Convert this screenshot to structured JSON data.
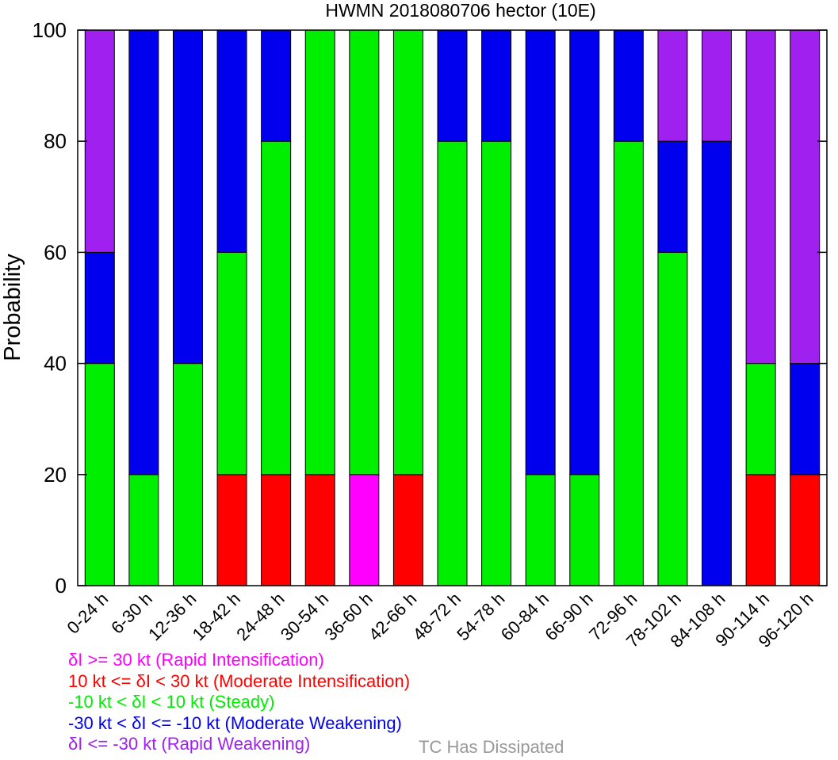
{
  "chart_data": {
    "type": "bar",
    "stacked": true,
    "title": "HWMN 2018080706 hector (10E)",
    "xlabel": "",
    "ylabel": "Probability",
    "ylim": [
      0,
      100
    ],
    "yticks": [
      0,
      20,
      40,
      60,
      80,
      100
    ],
    "categories": [
      "0-24 h",
      "6-30 h",
      "12-36 h",
      "18-42 h",
      "24-48 h",
      "30-54 h",
      "36-60 h",
      "42-66 h",
      "48-72 h",
      "54-78 h",
      "60-84 h",
      "66-90 h",
      "72-96 h",
      "78-102 h",
      "84-108 h",
      "90-114 h",
      "96-120 h"
    ],
    "series": [
      {
        "name": "Rapid Intensification",
        "color": "#ff00ff",
        "values": [
          0,
          0,
          0,
          0,
          0,
          0,
          20,
          0,
          0,
          0,
          0,
          0,
          0,
          0,
          0,
          0,
          0
        ]
      },
      {
        "name": "Moderate Intensification",
        "color": "#ff0000",
        "values": [
          0,
          0,
          0,
          20,
          20,
          20,
          0,
          20,
          0,
          0,
          0,
          0,
          0,
          0,
          0,
          20,
          20
        ]
      },
      {
        "name": "Steady",
        "color": "#00ee00",
        "values": [
          40,
          20,
          40,
          40,
          60,
          80,
          80,
          80,
          80,
          80,
          20,
          20,
          80,
          60,
          0,
          20,
          0
        ]
      },
      {
        "name": "Moderate Weakening",
        "color": "#0000ee",
        "values": [
          20,
          80,
          60,
          40,
          20,
          0,
          0,
          0,
          20,
          20,
          80,
          80,
          20,
          20,
          80,
          0,
          20
        ]
      },
      {
        "name": "Rapid Weakening",
        "color": "#a020f0",
        "values": [
          40,
          0,
          0,
          0,
          0,
          0,
          0,
          0,
          0,
          0,
          0,
          0,
          0,
          20,
          20,
          60,
          60
        ]
      }
    ]
  },
  "legend": [
    {
      "text": "δI >= 30 kt (Rapid Intensification)",
      "color": "#ff00ff"
    },
    {
      "text": "10 kt <= δI < 30 kt (Moderate Intensification)",
      "color": "#ff0000"
    },
    {
      "text": "-10 kt < δI < 10 kt (Steady)",
      "color": "#00ee00"
    },
    {
      "text": "-30 kt < δI <= -10 kt (Moderate Weakening)",
      "color": "#0000ee"
    },
    {
      "text": "δI <= -30 kt (Rapid Weakening)",
      "color": "#a020f0"
    }
  ],
  "dissipated": {
    "text": "TC Has Dissipated",
    "color": "#999999"
  }
}
